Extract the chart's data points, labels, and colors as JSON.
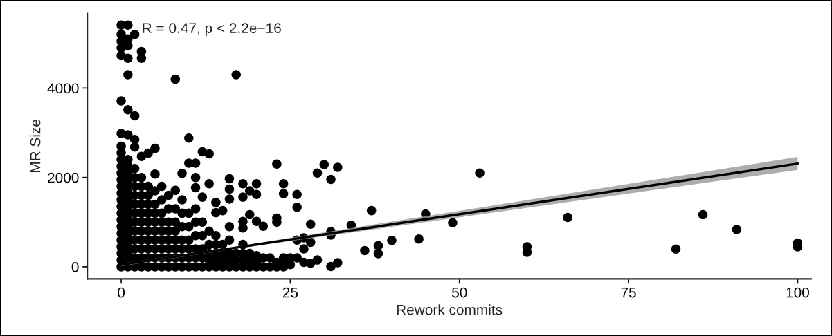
{
  "chart_data": {
    "type": "scatter",
    "xlabel": "Rework commits",
    "ylabel": "MR Size",
    "xlim": [
      -5,
      102
    ],
    "ylim": [
      -270,
      5670
    ],
    "xticks": [
      0,
      25,
      50,
      75,
      100
    ],
    "yticks": [
      0,
      2000,
      4000
    ],
    "grid": false,
    "marker": "circle",
    "annotations": [
      "R = 0.47, p < 2.2e−16"
    ],
    "series": [
      {
        "color": "#000000",
        "x": [
          0,
          0,
          0,
          0,
          0,
          0,
          0,
          0,
          0,
          0,
          0,
          0,
          0,
          0,
          0,
          0,
          0,
          0,
          0,
          0,
          0,
          0,
          0,
          0,
          0,
          0,
          1,
          1,
          1,
          1,
          1,
          1,
          1,
          1,
          1,
          1,
          1,
          1,
          1,
          1,
          1,
          1,
          1,
          1,
          1,
          1,
          1,
          1,
          1,
          1,
          2,
          2,
          2,
          2,
          2,
          2,
          2,
          2,
          2,
          2,
          2,
          2,
          2,
          2,
          2,
          2,
          3,
          3,
          3,
          3,
          3,
          3,
          3,
          3,
          3,
          3,
          3,
          3,
          3,
          3,
          4,
          4,
          4,
          4,
          4,
          4,
          4,
          4,
          4,
          4,
          4,
          5,
          5,
          5,
          5,
          5,
          5,
          5,
          5,
          5,
          5,
          5,
          6,
          6,
          6,
          6,
          6,
          6,
          6,
          6,
          6,
          7,
          7,
          7,
          7,
          7,
          7,
          7,
          7,
          8,
          8,
          8,
          8,
          8,
          8,
          8,
          8,
          8,
          9,
          9,
          9,
          9,
          9,
          9,
          9,
          9,
          10,
          10,
          10,
          10,
          10,
          10,
          10,
          10,
          11,
          11,
          11,
          11,
          11,
          11,
          11,
          11,
          11,
          12,
          12,
          12,
          12,
          12,
          12,
          12,
          13,
          13,
          13,
          13,
          13,
          13,
          13,
          14,
          14,
          14,
          14,
          14,
          14,
          14,
          15,
          15,
          15,
          15,
          15,
          16,
          16,
          16,
          16,
          16,
          16,
          16,
          16,
          17,
          17,
          17,
          17,
          18,
          18,
          18,
          18,
          18,
          18,
          18,
          18,
          19,
          19,
          19,
          19,
          19,
          20,
          20,
          20,
          20,
          20,
          20,
          21,
          21,
          21,
          22,
          22,
          23,
          23,
          23,
          23,
          23,
          24,
          24,
          24,
          24,
          24,
          25,
          25,
          26,
          26,
          26,
          26,
          27,
          27,
          27,
          28,
          28,
          28,
          29,
          29,
          30,
          31,
          31,
          31,
          31,
          32,
          32,
          34,
          36,
          37,
          38,
          38,
          40,
          44,
          45,
          49,
          53,
          60,
          60,
          66,
          82,
          86,
          91,
          100,
          100
        ],
        "values": [
          0,
          150,
          300,
          450,
          600,
          750,
          900,
          1050,
          1200,
          1350,
          1500,
          1650,
          1800,
          1950,
          2100,
          2250,
          2400,
          2550,
          2700,
          2985,
          3712,
          4727,
          4900,
          5050,
          5200,
          5409,
          0,
          150,
          300,
          450,
          600,
          750,
          900,
          1050,
          1200,
          1350,
          1500,
          1650,
          1800,
          1950,
          2100,
          2250,
          2400,
          2955,
          3515,
          4300,
          4667,
          4950,
          5100,
          5409,
          0,
          200,
          400,
          600,
          800,
          1000,
          1200,
          1400,
          1600,
          1800,
          2000,
          2200,
          2680,
          2850,
          3380,
          5200,
          0,
          200,
          400,
          600,
          800,
          1000,
          1200,
          1400,
          1600,
          1800,
          2000,
          2470,
          4667,
          4818,
          0,
          200,
          400,
          600,
          800,
          1000,
          1200,
          1400,
          1600,
          1800,
          2545,
          0,
          200,
          400,
          600,
          800,
          1000,
          1200,
          1400,
          1700,
          2075,
          2650,
          0,
          200,
          400,
          600,
          800,
          1000,
          1200,
          1500,
          1800,
          0,
          200,
          400,
          600,
          800,
          1000,
          1300,
          1600,
          0,
          200,
          400,
          600,
          800,
          1000,
          1300,
          1712,
          4200,
          0,
          200,
          400,
          600,
          900,
          1200,
          1500,
          2090,
          0,
          200,
          400,
          600,
          900,
          1200,
          2320,
          2880,
          0,
          200,
          400,
          700,
          1000,
          1300,
          1770,
          2000,
          2320,
          0,
          200,
          400,
          700,
          1000,
          1560,
          2575,
          0,
          150,
          300,
          500,
          800,
          1860,
          2530,
          0,
          150,
          300,
          500,
          700,
          1212,
          1440,
          0,
          150,
          300,
          500,
          1258,
          0,
          150,
          300,
          600,
          900,
          1515,
          1740,
          1970,
          0,
          150,
          300,
          4300,
          0,
          150,
          300,
          500,
          870,
          1015,
          1560,
          1860,
          0,
          150,
          300,
          1167,
          1700,
          0,
          100,
          250,
          1015,
          1620,
          1860,
          0,
          200,
          909,
          0,
          200,
          0,
          100,
          1000,
          1091,
          2300,
          0,
          100,
          200,
          1640,
          1860,
          50,
          200,
          200,
          600,
          1333,
          1620,
          100,
          400,
          650,
          80,
          550,
          955,
          152,
          2100,
          2288,
          8,
          712,
          788,
          1955,
          91,
          2227,
          930,
          364,
          1258,
          476,
          295,
          591,
          621,
          1182,
          985,
          2100,
          447,
          324,
          1106,
          397,
          1167,
          833,
          533,
          447
        ]
      },
      {
        "type": "line",
        "marker": "none",
        "color": "#000000",
        "x": [
          0,
          17,
          100
        ],
        "values": [
          50,
          430,
          2310
        ],
        "lower": [
          15,
          405,
          2170
        ],
        "upper": [
          75,
          455,
          2460
        ]
      }
    ]
  }
}
